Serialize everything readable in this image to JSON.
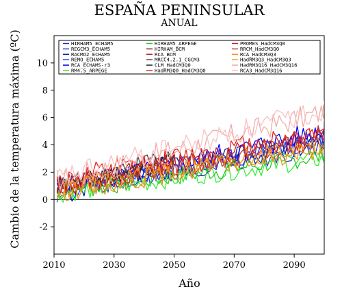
{
  "chart_data": {
    "type": "line",
    "title": "ESPAÑA PENINSULAR",
    "subtitle": "ANUAL",
    "xlabel": "Año",
    "ylabel": "Cambio de la temperatura máxima (ºC)",
    "xlim": [
      2010,
      2100
    ],
    "ylim": [
      -4,
      12
    ],
    "x_ticks": [
      2010,
      2030,
      2050,
      2070,
      2090
    ],
    "y_ticks": [
      -2,
      0,
      2,
      4,
      6,
      8,
      10
    ],
    "x_tick_labels": [
      "2010",
      "2030",
      "2050",
      "2070",
      "2090"
    ],
    "y_tick_labels": [
      "-2",
      "0",
      "2",
      "4",
      "6",
      "8",
      "10"
    ],
    "reference_line": 0,
    "grid": false,
    "legend_position": "top",
    "series": [
      {
        "name": "HIRHAM5_ECHAM5",
        "color": "#1a2fd6",
        "start": 2011,
        "end": 2100,
        "y_start": 0.8,
        "y_end": 4.0,
        "amp": 0.8,
        "seed": 1
      },
      {
        "name": "REGCM3_ECHAM5",
        "color": "#2a3bb8",
        "start": 2011,
        "end": 2100,
        "y_start": 0.7,
        "y_end": 3.8,
        "amp": 0.7,
        "seed": 2
      },
      {
        "name": "RACMO2_ECHAM5",
        "color": "#0b1e9e",
        "start": 2011,
        "end": 2100,
        "y_start": 0.9,
        "y_end": 4.2,
        "amp": 0.8,
        "seed": 3
      },
      {
        "name": "REMO_ECHAM5",
        "color": "#2140e8",
        "start": 2011,
        "end": 2100,
        "y_start": 0.6,
        "y_end": 4.6,
        "amp": 0.9,
        "seed": 4
      },
      {
        "name": "RCA_ECHAMS-r3",
        "color": "#0000ff",
        "start": 2011,
        "end": 2100,
        "y_start": 0.5,
        "y_end": 5.0,
        "amp": 0.9,
        "seed": 5
      },
      {
        "name": "RM4.5_ARPEGE",
        "color": "#33ee33",
        "start": 2011,
        "end": 2100,
        "y_start": 0.4,
        "y_end": 3.0,
        "amp": 0.7,
        "seed": 6
      },
      {
        "name": "HIRHAM5_ARPEGE",
        "color": "#22cc22",
        "start": 2011,
        "end": 2100,
        "y_start": 0.5,
        "y_end": 3.2,
        "amp": 0.7,
        "seed": 7
      },
      {
        "name": "HIRHAM_BCM",
        "color": "#8b1a1a",
        "start": 2011,
        "end": 2050,
        "y_start": 0.8,
        "y_end": 2.6,
        "amp": 0.6,
        "seed": 8
      },
      {
        "name": "RCA_BCM",
        "color": "#b22222",
        "start": 2011,
        "end": 2050,
        "y_start": 0.9,
        "y_end": 2.8,
        "amp": 0.6,
        "seed": 9
      },
      {
        "name": "MRCC4.2.1_CGCM3",
        "color": "#444444",
        "start": 2011,
        "end": 2050,
        "y_start": 1.0,
        "y_end": 3.4,
        "amp": 0.6,
        "seed": 10
      },
      {
        "name": "CLM_HadCM3Q0",
        "color": "#222222",
        "start": 2011,
        "end": 2050,
        "y_start": 0.9,
        "y_end": 2.9,
        "amp": 0.7,
        "seed": 11
      },
      {
        "name": "HadRM3Q0_HadCM3Q0",
        "color": "#e8221e",
        "start": 2011,
        "end": 2100,
        "y_start": 1.2,
        "y_end": 5.0,
        "amp": 1.0,
        "seed": 12
      },
      {
        "name": "PROMES_HadCM3Q0",
        "color": "#d81e1e",
        "start": 2011,
        "end": 2100,
        "y_start": 1.0,
        "y_end": 4.6,
        "amp": 0.9,
        "seed": 13
      },
      {
        "name": "RRCM_HadCM3Q0",
        "color": "#c0392b",
        "start": 2011,
        "end": 2100,
        "y_start": 0.9,
        "y_end": 4.4,
        "amp": 0.8,
        "seed": 14
      },
      {
        "name": "RCA_HadCM3Q3",
        "color": "#ff8c1a",
        "start": 2011,
        "end": 2100,
        "y_start": 0.6,
        "y_end": 3.8,
        "amp": 0.8,
        "seed": 15
      },
      {
        "name": "HadRM3Q3_HadCM3Q3",
        "color": "#e6a020",
        "start": 2011,
        "end": 2100,
        "y_start": 0.7,
        "y_end": 4.0,
        "amp": 0.8,
        "seed": 16
      },
      {
        "name": "HadRM3Q16_HadCM3Q16",
        "color": "#f2aaaa",
        "start": 2011,
        "end": 2100,
        "y_start": 1.4,
        "y_end": 6.4,
        "amp": 0.9,
        "seed": 17
      },
      {
        "name": "RCA3_HadCM3Q16",
        "color": "#f7c3c3",
        "start": 2011,
        "end": 2100,
        "y_start": 1.5,
        "y_end": 6.6,
        "amp": 0.9,
        "seed": 18
      }
    ]
  }
}
